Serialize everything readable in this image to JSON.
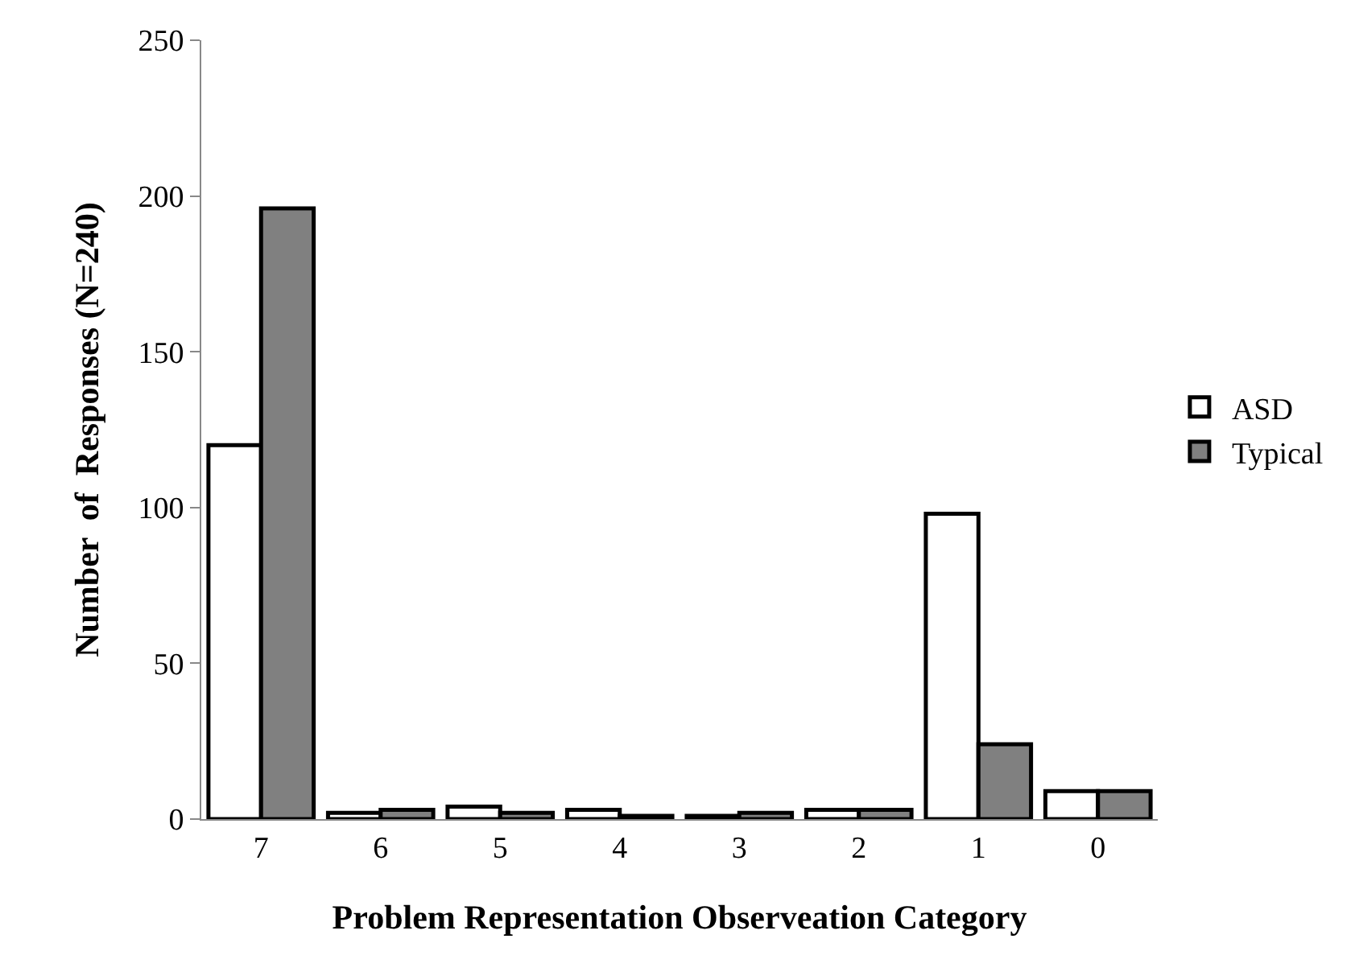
{
  "chart_data": {
    "type": "bar",
    "xlabel": "Problem Representation Observeation Category",
    "ylabel": "Number  of  Responses (N=240)",
    "categories": [
      "7",
      "6",
      "5",
      "4",
      "3",
      "2",
      "1",
      "0"
    ],
    "series": [
      {
        "name": "ASD",
        "color": "#ffffff",
        "values": [
          120,
          2,
          4,
          3,
          1,
          3,
          98,
          9
        ]
      },
      {
        "name": "Typical",
        "color": "#808080",
        "values": [
          196,
          3,
          2,
          1,
          2,
          3,
          24,
          9
        ]
      }
    ],
    "ylim": [
      0,
      250
    ],
    "yticks": [
      0,
      50,
      100,
      150,
      200,
      250
    ],
    "grid": false,
    "legend": "right"
  }
}
